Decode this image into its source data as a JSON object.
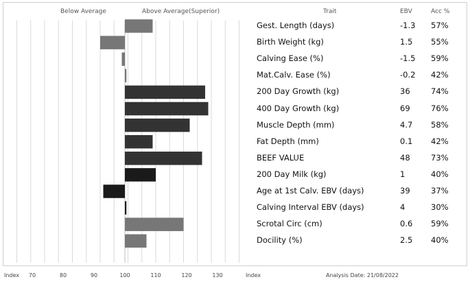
{
  "header": {
    "below_average": "Below Average",
    "above_average": "Above Average(Superior)",
    "trait": "Trait",
    "ebv": "EBV",
    "acc": "Acc %"
  },
  "footer": {
    "index_left": "Index",
    "index_right": "Index",
    "analysis_date": "Analysis Date: 21/08/2022"
  },
  "chart_data": {
    "type": "bar",
    "orientation": "horizontal",
    "xlabel": "Index",
    "xlim": [
      64,
      142
    ],
    "baseline": 100,
    "xticks": [
      70,
      80,
      90,
      100,
      110,
      120,
      130
    ],
    "grid": true,
    "categories": [
      "Gest. Length (days)",
      "Birth Weight (kg)",
      "Calving Ease (%)",
      "Mat.Calv. Ease (%)",
      "200 Day Growth (kg)",
      "400 Day Growth (kg)",
      "Muscle Depth (mm)",
      "Fat Depth (mm)",
      "BEEF VALUE",
      "200 Day Milk (kg)",
      "Age at 1st Calv. EBV (days)",
      "Calving Interval EBV (days)",
      "Scrotal Circ (cm)",
      "Docility (%)"
    ],
    "values": [
      109,
      92,
      99,
      100.5,
      126,
      127,
      121,
      109,
      125,
      110,
      93,
      100.5,
      119,
      107
    ],
    "ebv": [
      "-1.3",
      "1.5",
      "-1.5",
      "-0.2",
      "36",
      "69",
      "4.7",
      "0.1",
      "48",
      "1",
      "39",
      "4",
      "0.6",
      "2.5"
    ],
    "acc": [
      "57%",
      "55%",
      "59%",
      "42%",
      "74%",
      "76%",
      "58%",
      "42%",
      "73%",
      "40%",
      "37%",
      "30%",
      "59%",
      "40%"
    ],
    "bar_colors": [
      "#777777",
      "#777777",
      "#777777",
      "#777777",
      "#333333",
      "#333333",
      "#333333",
      "#333333",
      "#333333",
      "#1a1a1a",
      "#1a1a1a",
      "#1a1a1a",
      "#777777",
      "#777777"
    ]
  }
}
